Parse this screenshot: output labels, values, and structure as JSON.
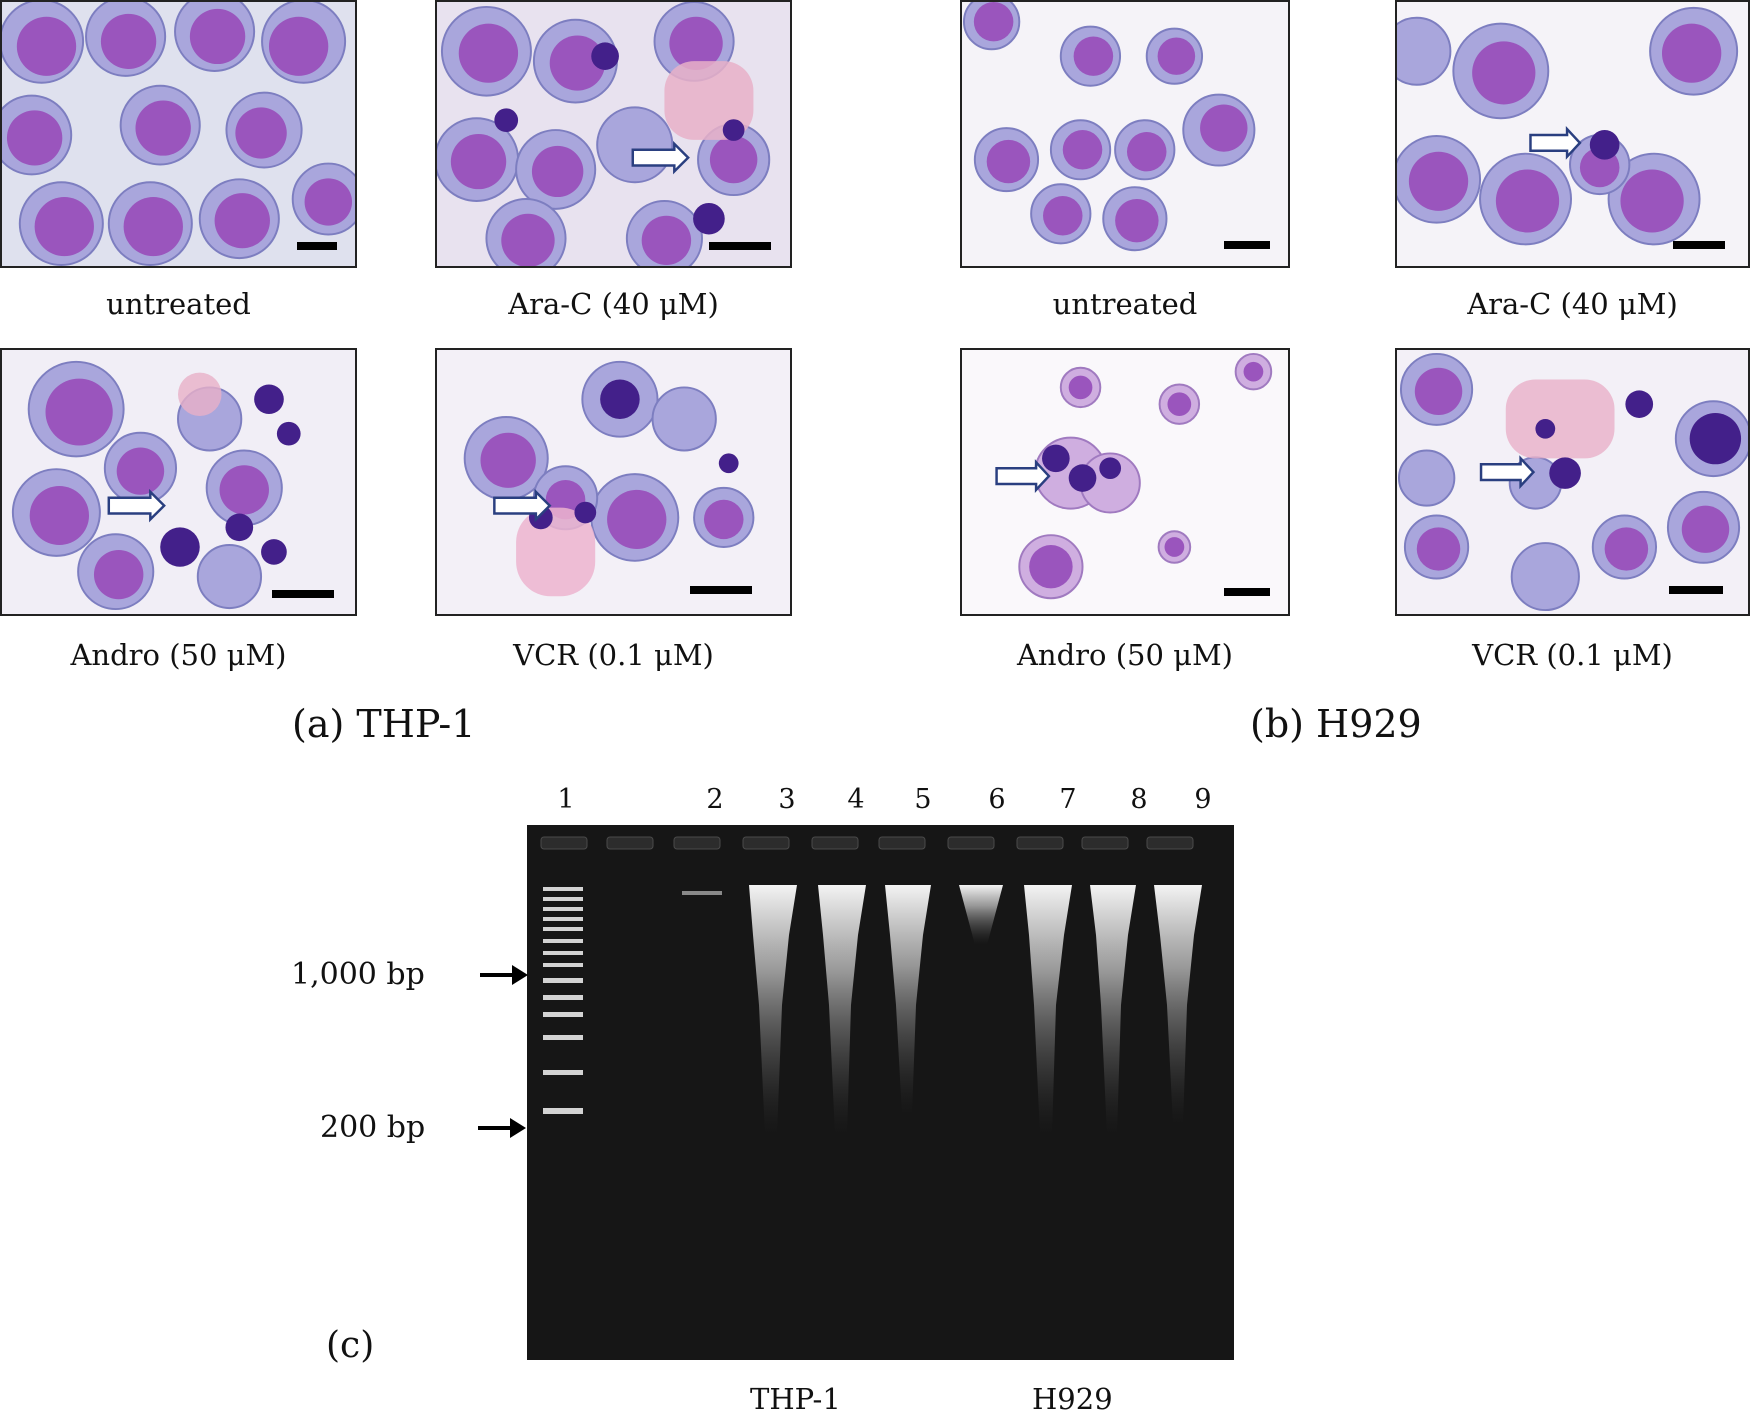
{
  "panel_a": {
    "label": "(a) THP-1",
    "images": [
      {
        "caption": "untreated",
        "has_arrow": false
      },
      {
        "caption": "Ara-C (40 μM)",
        "has_arrow": true
      },
      {
        "caption": "Andro (50 μM)",
        "has_arrow": true
      },
      {
        "caption": "VCR (0.1 μM)",
        "has_arrow": true
      }
    ]
  },
  "panel_b": {
    "label": "(b) H929",
    "images": [
      {
        "caption": "untreated",
        "has_arrow": false
      },
      {
        "caption": "Ara-C (40 μM)",
        "has_arrow": true
      },
      {
        "caption": "Andro (50 μM)",
        "has_arrow": true
      },
      {
        "caption": "VCR (0.1 μM)",
        "has_arrow": true
      }
    ]
  },
  "panel_c": {
    "label": "(c)",
    "lane_numbers": [
      "1",
      "2",
      "3",
      "4",
      "5",
      "6",
      "7",
      "8",
      "9"
    ],
    "size_markers": [
      "1,000 bp",
      "200 bp"
    ],
    "group_labels": [
      "THP-1",
      "H929"
    ]
  },
  "colors": {
    "cell_cytoplasm": "#a9a6dc",
    "cell_nucleus": "#9a55bd",
    "cell_dark": "#43208a",
    "gel_background": "#161616",
    "band": "#ffffff",
    "arrow_outline": "#2a3f80"
  }
}
